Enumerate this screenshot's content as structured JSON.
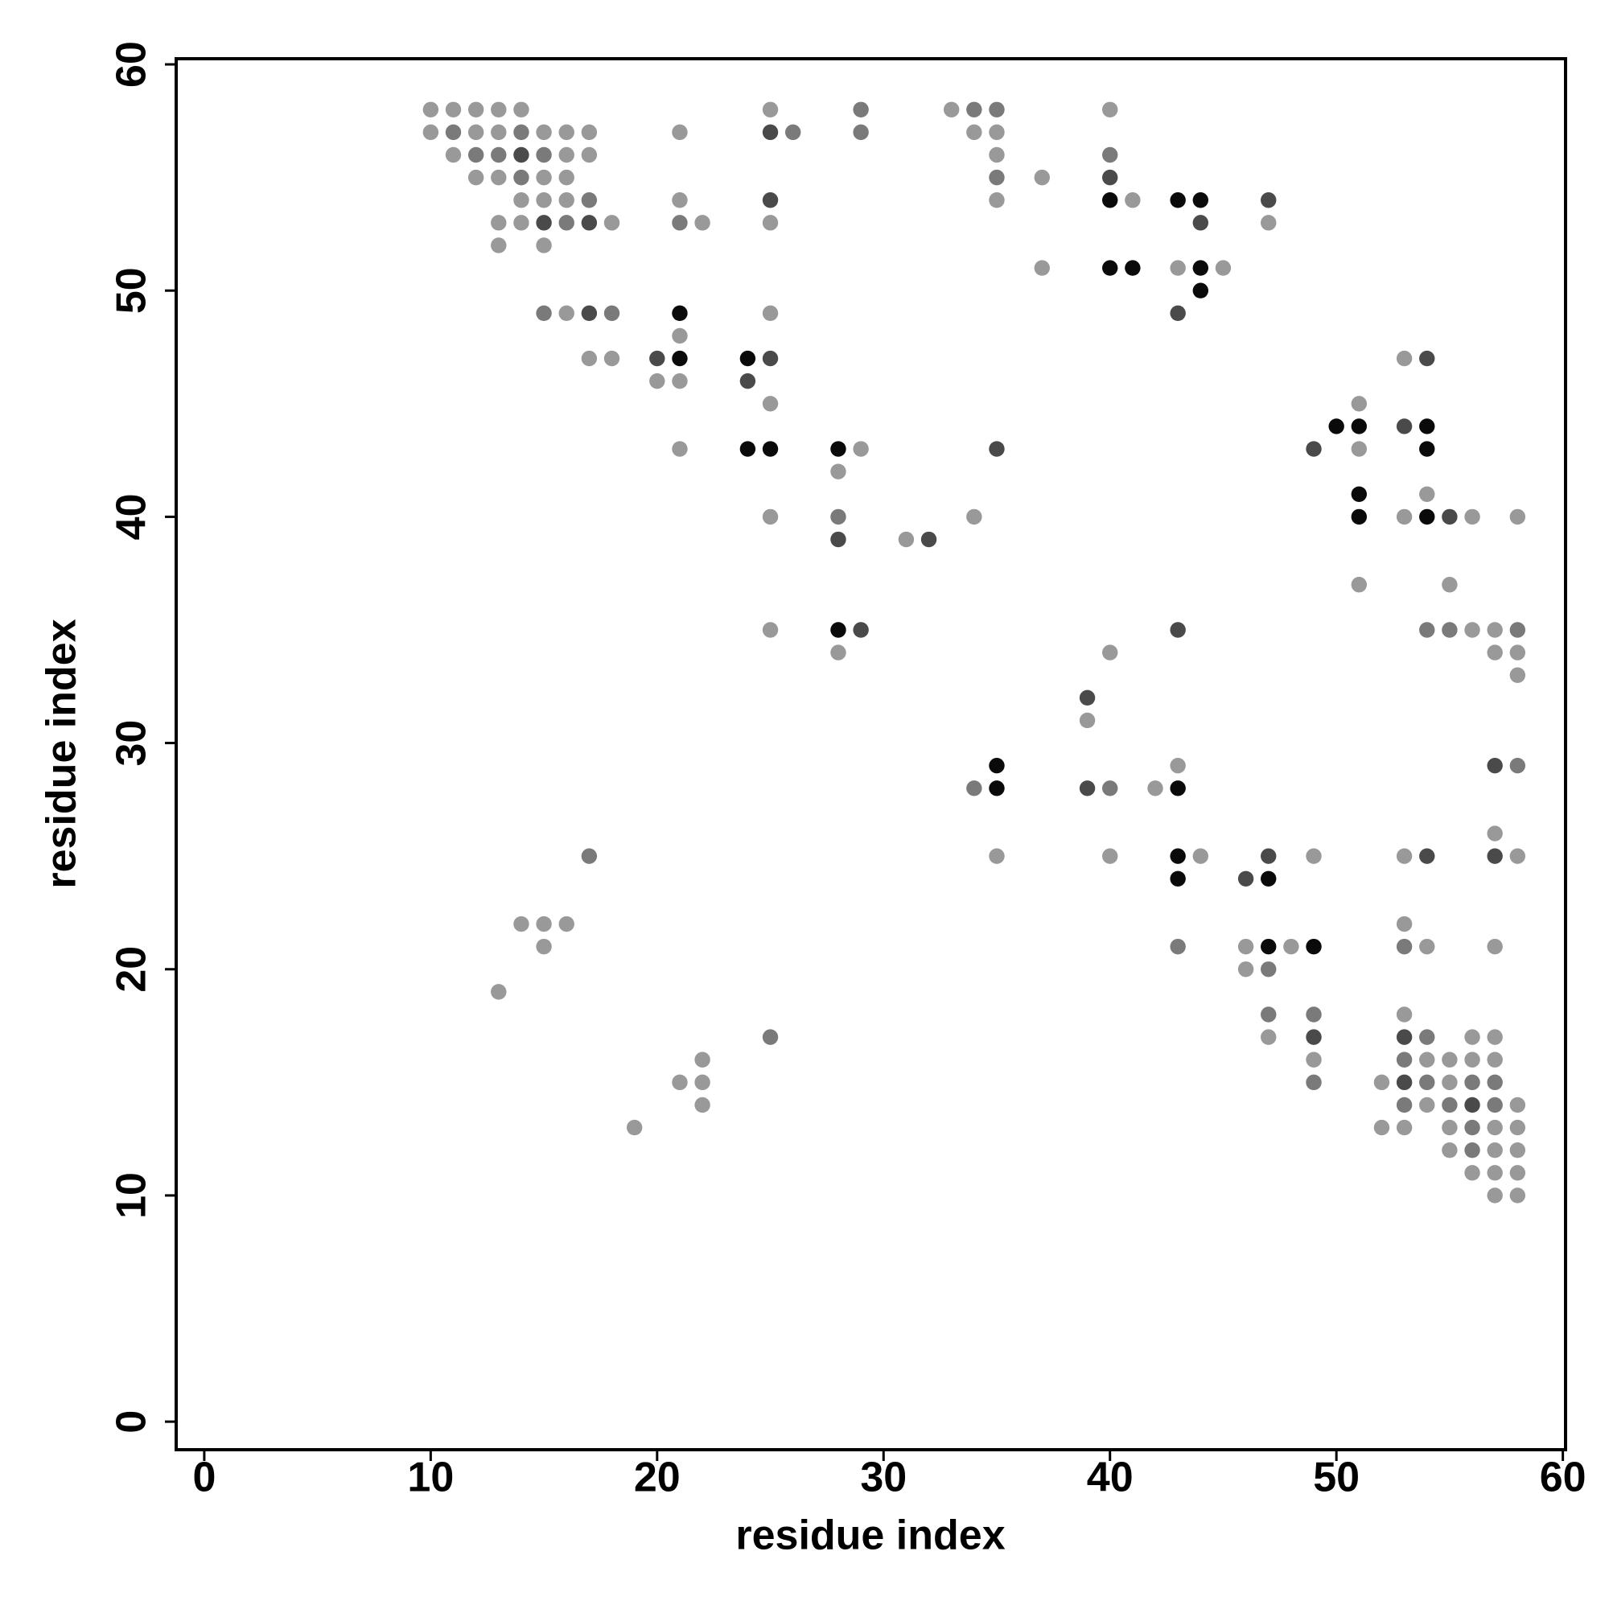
{
  "chart_data": {
    "type": "scatter",
    "xlabel": "residue index",
    "ylabel": "residue index",
    "xlim": [
      -1.24,
      60.12
    ],
    "ylim": [
      -1.24,
      60.25
    ],
    "xticks": [
      0,
      10,
      20,
      30,
      40,
      50,
      60
    ],
    "yticks": [
      0,
      10,
      20,
      30,
      40,
      50,
      60
    ],
    "series": [
      {
        "color": "#999999",
        "x": [
          10,
          11,
          12,
          13,
          14,
          25,
          33,
          40,
          10,
          12,
          13,
          15,
          16,
          17,
          21,
          34,
          35,
          11,
          16,
          17,
          35,
          12,
          13,
          15,
          16,
          37,
          14,
          15,
          16,
          21,
          35,
          41,
          13,
          14,
          18,
          22,
          25,
          47,
          13,
          15,
          37,
          43,
          45,
          16,
          25,
          21,
          17,
          18,
          53,
          20,
          21,
          25,
          51,
          21,
          29,
          51,
          28,
          54,
          25,
          34,
          53,
          56,
          58,
          31,
          51,
          55,
          25,
          56,
          57,
          28,
          40,
          57,
          58,
          58,
          39,
          43,
          42,
          57,
          35,
          40,
          44,
          49,
          53,
          58,
          14,
          15,
          16,
          53,
          15,
          46,
          48,
          54,
          57,
          46,
          13,
          53,
          47,
          56,
          57,
          22,
          49,
          54,
          55,
          56,
          57,
          21,
          22,
          52,
          55,
          22,
          54,
          58,
          19,
          52,
          53,
          55,
          57,
          58,
          55,
          57,
          58,
          56,
          57,
          58,
          57,
          58
        ],
        "y": [
          58,
          58,
          58,
          58,
          58,
          58,
          58,
          58,
          57,
          57,
          57,
          57,
          57,
          57,
          57,
          57,
          57,
          56,
          56,
          56,
          56,
          55,
          55,
          55,
          55,
          55,
          54,
          54,
          54,
          54,
          54,
          54,
          53,
          53,
          53,
          53,
          53,
          53,
          52,
          52,
          51,
          51,
          51,
          49,
          49,
          48,
          47,
          47,
          47,
          46,
          46,
          45,
          45,
          43,
          43,
          43,
          42,
          41,
          40,
          40,
          40,
          40,
          40,
          39,
          37,
          37,
          35,
          35,
          35,
          34,
          34,
          34,
          34,
          33,
          31,
          29,
          28,
          26,
          25,
          25,
          25,
          25,
          25,
          25,
          22,
          22,
          22,
          22,
          21,
          21,
          21,
          21,
          21,
          20,
          19,
          18,
          17,
          17,
          17,
          16,
          16,
          16,
          16,
          16,
          16,
          15,
          15,
          15,
          15,
          14,
          14,
          14,
          13,
          13,
          13,
          13,
          13,
          13,
          12,
          12,
          12,
          11,
          11,
          11,
          10,
          10
        ]
      },
      {
        "color": "#7a7a7a",
        "x": [
          29,
          34,
          35,
          11,
          14,
          26,
          29,
          12,
          13,
          15,
          40,
          14,
          35,
          17,
          16,
          21,
          15,
          18,
          28,
          54,
          55,
          58,
          58,
          34,
          40,
          17,
          43,
          53,
          47,
          47,
          49,
          25,
          54,
          53,
          49,
          54,
          56,
          57,
          53,
          55,
          57,
          56,
          56
        ],
        "y": [
          58,
          58,
          58,
          57,
          57,
          57,
          57,
          56,
          56,
          56,
          56,
          55,
          55,
          54,
          53,
          53,
          49,
          49,
          40,
          35,
          35,
          35,
          29,
          28,
          28,
          25,
          21,
          21,
          20,
          18,
          18,
          17,
          17,
          16,
          15,
          15,
          15,
          15,
          14,
          14,
          14,
          13,
          12
        ]
      },
      {
        "color": "#4a4a4a",
        "x": [
          25,
          14,
          40,
          25,
          47,
          15,
          17,
          44,
          17,
          43,
          20,
          25,
          54,
          24,
          53,
          35,
          49,
          55,
          28,
          32,
          29,
          43,
          39,
          57,
          39,
          47,
          54,
          57,
          46,
          49,
          53,
          53,
          56
        ],
        "y": [
          57,
          56,
          55,
          54,
          54,
          53,
          53,
          53,
          49,
          49,
          47,
          47,
          47,
          46,
          44,
          43,
          43,
          40,
          39,
          39,
          35,
          35,
          32,
          29,
          28,
          25,
          25,
          25,
          24,
          17,
          17,
          15,
          14
        ]
      },
      {
        "color": "#0a0a0a",
        "x": [
          40,
          43,
          44,
          40,
          41,
          44,
          44,
          21,
          21,
          24,
          50,
          51,
          54,
          24,
          25,
          28,
          54,
          51,
          51,
          54,
          28,
          35,
          35,
          43,
          43,
          43,
          47,
          47,
          49
        ],
        "y": [
          54,
          54,
          54,
          51,
          51,
          51,
          50,
          49,
          47,
          47,
          44,
          44,
          44,
          43,
          43,
          43,
          43,
          41,
          40,
          40,
          35,
          29,
          28,
          28,
          25,
          24,
          24,
          21,
          21
        ]
      }
    ]
  }
}
